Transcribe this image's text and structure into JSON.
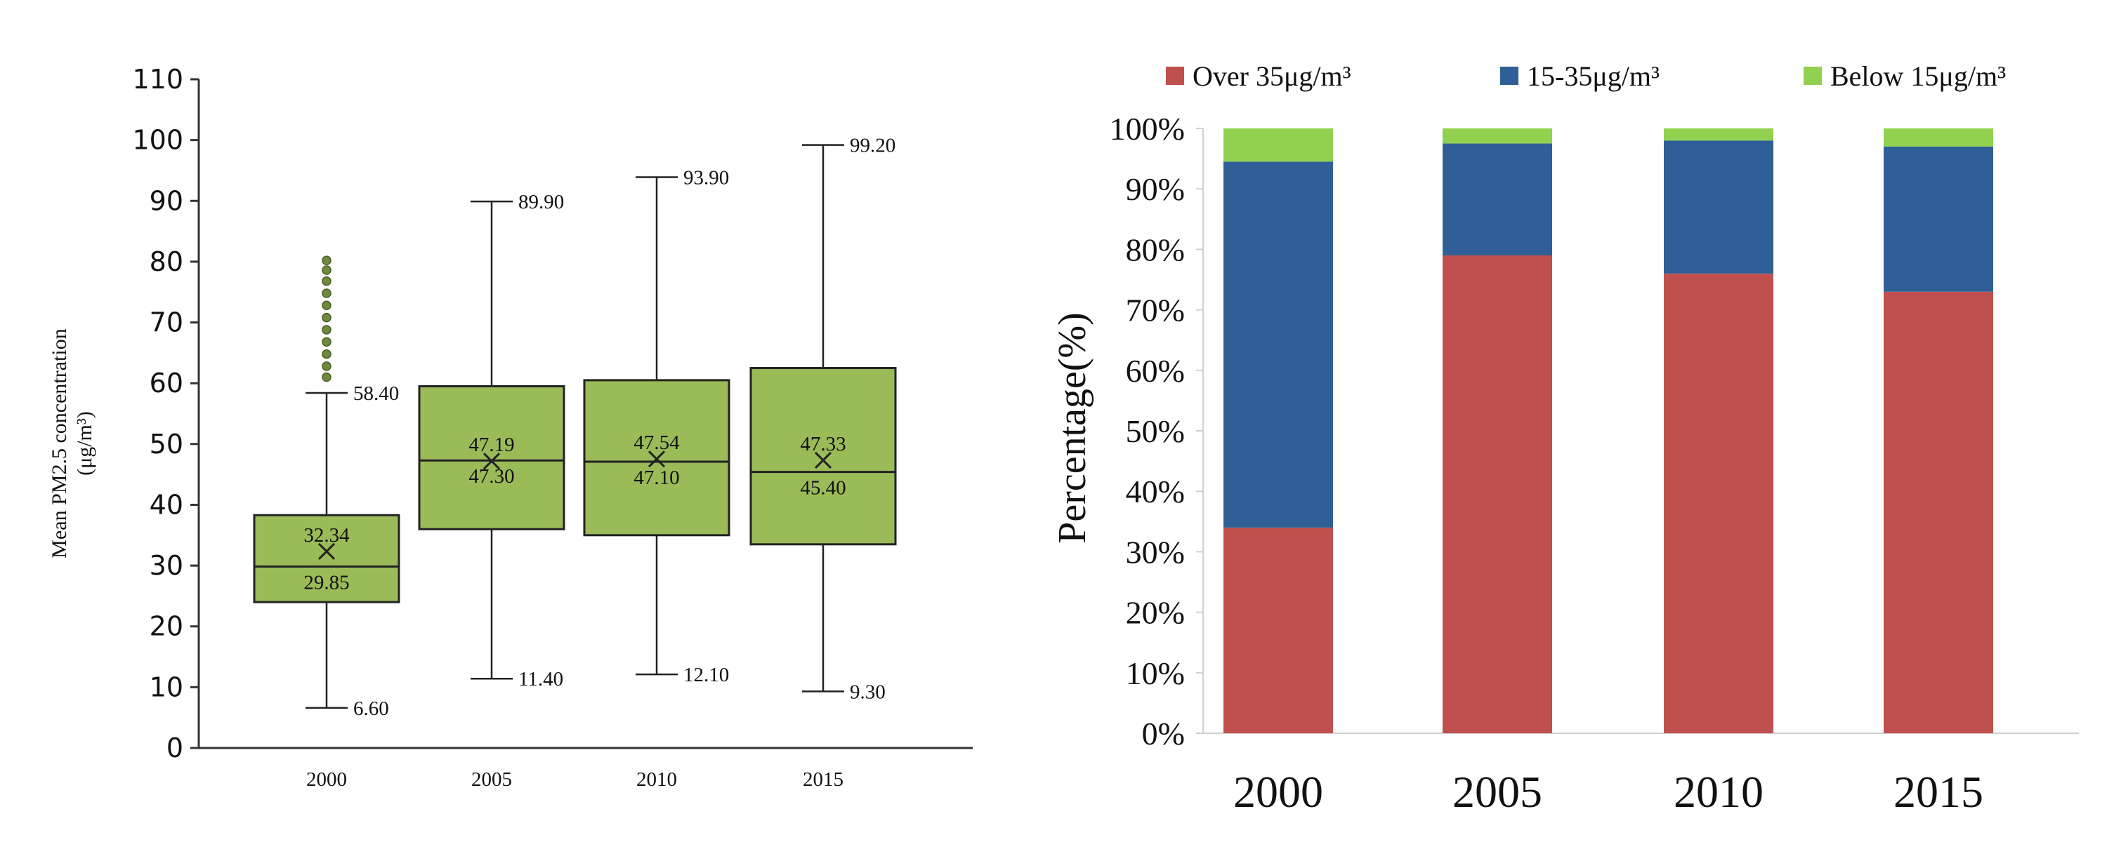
{
  "colors": {
    "box_fill": "#9bbb59",
    "outlier": "#6e8b3d",
    "over35": "#c0504d",
    "mid": "#2f5f96",
    "below15": "#92d050"
  },
  "chart_data": [
    {
      "type": "box",
      "title": "",
      "ylabel_line1": "Mean PM2.5 concentration",
      "ylabel_line2": "(μg/m³)",
      "xlabel": "",
      "ylim": [
        0,
        110
      ],
      "yticks": [
        0,
        10,
        20,
        30,
        40,
        50,
        60,
        70,
        80,
        90,
        100,
        110
      ],
      "categories": [
        "2000",
        "2005",
        "2010",
        "2015"
      ],
      "boxes": [
        {
          "year": "2000",
          "min": 6.6,
          "q1": 24.0,
          "median": 29.85,
          "mean": 32.34,
          "q3": 38.3,
          "max": 58.4,
          "outliers": [
            61,
            62.8,
            64.8,
            66.8,
            68.8,
            70.8,
            72.8,
            74.8,
            76.8,
            78.6,
            80.2
          ],
          "labels": {
            "max": "58.40",
            "min": "6.60",
            "mean": "32.34",
            "median": "29.85"
          }
        },
        {
          "year": "2005",
          "min": 11.4,
          "q1": 36.0,
          "median": 47.3,
          "mean": 47.19,
          "q3": 59.5,
          "max": 89.9,
          "outliers": [],
          "labels": {
            "max": "89.90",
            "min": "11.40",
            "mean": "47.19",
            "median": "47.30"
          }
        },
        {
          "year": "2010",
          "min": 12.1,
          "q1": 35.0,
          "median": 47.1,
          "mean": 47.54,
          "q3": 60.5,
          "max": 93.9,
          "outliers": [],
          "labels": {
            "max": "93.90",
            "min": "12.10",
            "mean": "47.54",
            "median": "47.10"
          }
        },
        {
          "year": "2015",
          "min": 9.3,
          "q1": 33.5,
          "median": 45.4,
          "mean": 47.33,
          "q3": 62.5,
          "max": 99.2,
          "outliers": [],
          "labels": {
            "max": "99.20",
            "min": "9.30",
            "mean": "47.33",
            "median": "45.40"
          }
        }
      ]
    },
    {
      "type": "bar",
      "stacked": true,
      "title": "",
      "ylabel": "Percentage(%)",
      "xlabel": "",
      "ylim": [
        0,
        100
      ],
      "ytick_labels": [
        "0%",
        "10%",
        "20%",
        "30%",
        "40%",
        "50%",
        "60%",
        "70%",
        "80%",
        "90%",
        "100%"
      ],
      "categories": [
        "2000",
        "2005",
        "2010",
        "2015"
      ],
      "legend_position": "top",
      "series": [
        {
          "name": "Over 35μg/m³",
          "values": [
            34,
            79,
            76,
            73
          ]
        },
        {
          "name": "15-35μg/m³",
          "values": [
            60.5,
            18.5,
            22,
            24
          ]
        },
        {
          "name": "Below 15μg/m³",
          "values": [
            5.5,
            2.5,
            2,
            3
          ]
        }
      ]
    }
  ]
}
